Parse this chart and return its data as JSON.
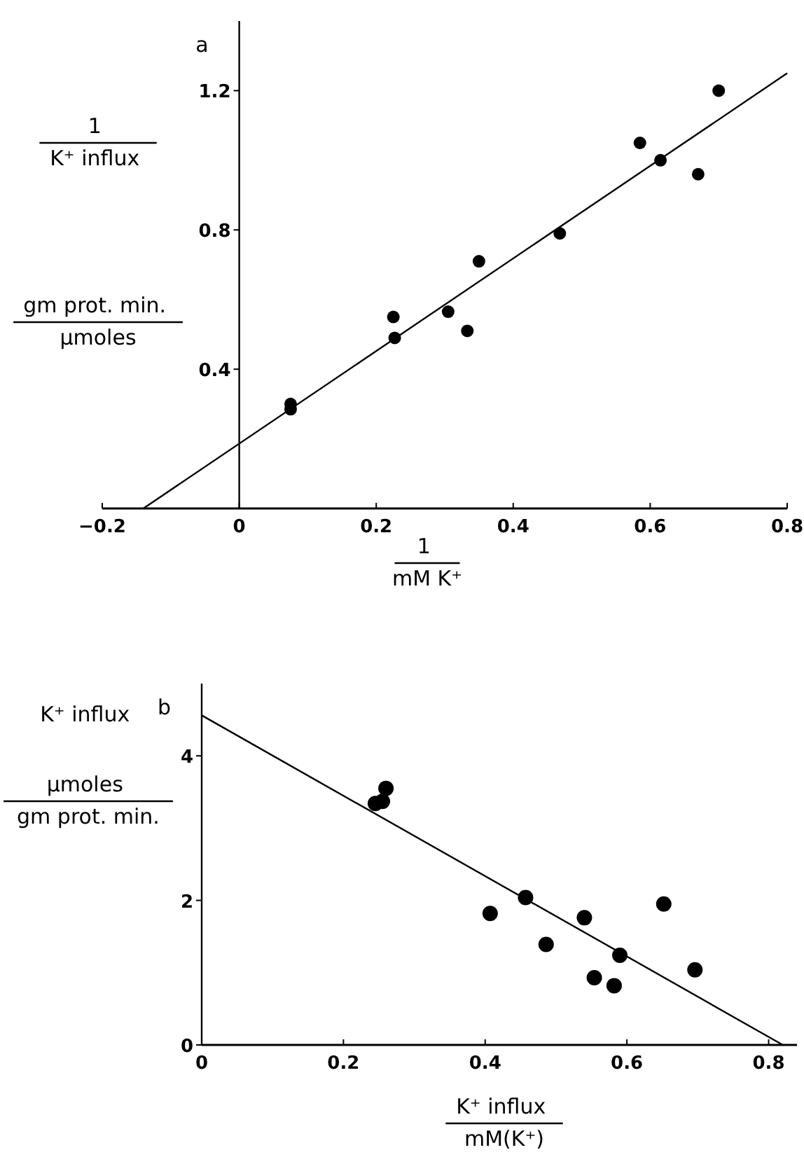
{
  "chart_data": [
    {
      "type": "scatter",
      "title": "a",
      "xlabel": "1\nmM K⁺",
      "ylabel": "1\nK⁺ influx\ngm prot. min.\nµmoles",
      "xlim": [
        -0.2,
        0.8
      ],
      "xticks": [
        -0.2,
        0,
        0.2,
        0.4,
        0.6,
        0.8
      ],
      "ylim": [
        0,
        1.4
      ],
      "yticks": [
        0.4,
        0.8,
        1.2
      ],
      "grid": false,
      "marker": "circle",
      "series": [
        {
          "color": "#000000",
          "x": [
            0.075,
            0.075,
            0.225,
            0.227,
            0.305,
            0.333,
            0.35,
            0.468,
            0.585,
            0.615,
            0.67,
            0.7
          ],
          "values": [
            0.3,
            0.285,
            0.55,
            0.49,
            0.565,
            0.51,
            0.71,
            0.79,
            1.05,
            1.0,
            0.96,
            1.2
          ]
        },
        {
          "type": "line",
          "marker": "none",
          "color": "#000000",
          "x": [
            -0.14,
            0.8
          ],
          "values": [
            0,
            1.25
          ]
        }
      ]
    },
    {
      "type": "scatter",
      "title": "b",
      "xlabel": "K⁺ influx\nmM(K⁺)",
      "ylabel": "K⁺ influx\nµmoles\ngm prot. min.",
      "xlim": [
        0,
        0.84
      ],
      "xticks": [
        0,
        0.2,
        0.4,
        0.6,
        0.8
      ],
      "ylim": [
        0,
        5
      ],
      "yticks": [
        0,
        2,
        4
      ],
      "grid": false,
      "marker": "circle",
      "series": [
        {
          "color": "#000000",
          "x": [
            0.245,
            0.255,
            0.26,
            0.407,
            0.457,
            0.486,
            0.54,
            0.554,
            0.582,
            0.59,
            0.652,
            0.696
          ],
          "values": [
            3.34,
            3.37,
            3.55,
            1.82,
            2.04,
            1.39,
            1.76,
            0.93,
            0.82,
            1.24,
            1.95,
            1.04
          ]
        },
        {
          "type": "line",
          "marker": "none",
          "color": "#000000",
          "x": [
            0,
            0.82
          ],
          "values": [
            4.56,
            0
          ]
        }
      ]
    }
  ]
}
